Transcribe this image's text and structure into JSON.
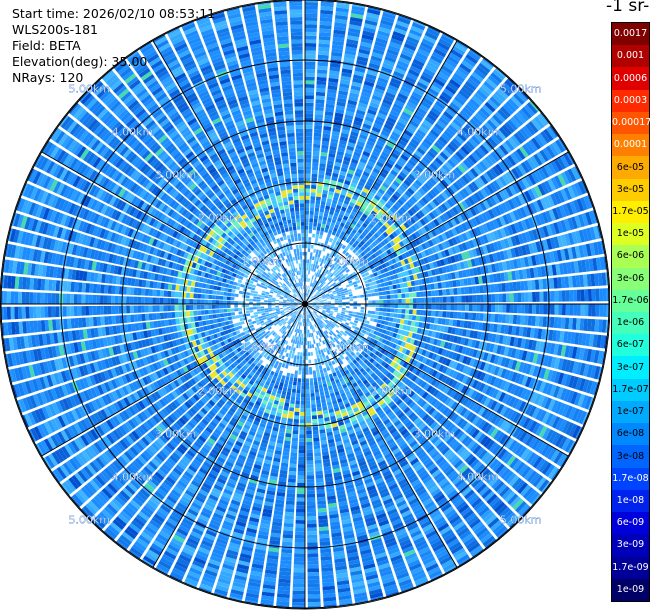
{
  "header": {
    "start_time": "Start time: 2026/02/10 08:53:11",
    "instrument": "WLS200s-181",
    "field": "Field: BETA",
    "elevation": "Elevation(deg): 35.00",
    "nrays": "NRays: 120"
  },
  "colorbar": {
    "title": "-1 sr-",
    "labels": [
      "0.0017",
      "0.001",
      "0.0006",
      "0.0003",
      "0.00017",
      "0.0001",
      "6e-05",
      "3e-05",
      "1.7e-05",
      "1e-05",
      "6e-06",
      "3e-06",
      "1.7e-06",
      "1e-06",
      "6e-07",
      "3e-07",
      "1.7e-07",
      "1e-07",
      "6e-08",
      "3e-08",
      "1.7e-08",
      "1e-08",
      "6e-09",
      "3e-09",
      "1.7e-09",
      "1e-09"
    ],
    "colors": [
      "#800000",
      "#b00000",
      "#e00000",
      "#ff2a00",
      "#ff5500",
      "#ff8000",
      "#ffaa00",
      "#ffcc00",
      "#ffee00",
      "#ddff22",
      "#aaff55",
      "#88ff77",
      "#66ff99",
      "#44ffbb",
      "#22ffdd",
      "#00eeff",
      "#00ccff",
      "#00aaff",
      "#0088ff",
      "#0066ff",
      "#0044ff",
      "#0022ee",
      "#0000dd",
      "#0000bb",
      "#000099",
      "#000066"
    ]
  },
  "range_rings": {
    "labels": [
      "1.00km",
      "2.00km",
      "3.00km",
      "4.00km",
      "5.00km"
    ]
  },
  "scan": {
    "nrays": 120,
    "max_range_km": 5.5,
    "aerosol_ring_km": [
      1.7,
      2.0
    ]
  },
  "colors": {
    "background_field": "#1a8cff",
    "ring_echo": "#e6e632"
  }
}
